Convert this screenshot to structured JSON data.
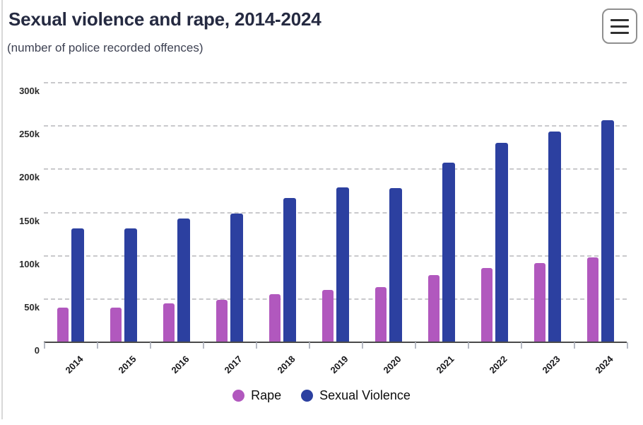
{
  "header": {
    "icons": {
      "menu": "hamburger-icon"
    }
  },
  "chart_data": {
    "type": "bar",
    "title": "Sexual violence and rape, 2014-2024",
    "subtitle": "(number of police recorded offences)",
    "categories": [
      "2014",
      "2015",
      "2016",
      "2017",
      "2018",
      "2019",
      "2020",
      "2021",
      "2022",
      "2023",
      "2024"
    ],
    "series": [
      {
        "name": "Rape",
        "color": "#b158be",
        "values": [
          39000,
          39000,
          44000,
          48000,
          55000,
          60000,
          63000,
          77000,
          85000,
          91000,
          97000
        ]
      },
      {
        "name": "Sexual Violence",
        "color": "#2c40a0",
        "values": [
          131000,
          131000,
          142000,
          148000,
          166000,
          178000,
          177000,
          207000,
          230000,
          243000,
          256000
        ]
      }
    ],
    "xlabel": "",
    "ylabel": "",
    "ylim": [
      0,
      300000
    ],
    "ytick_step": 50000,
    "ytick_labels": [
      "0",
      "50k",
      "100k",
      "150k",
      "200k",
      "250k",
      "300k"
    ],
    "grid": "horizontal-dashed",
    "grid_color": "#c9c9cc",
    "axis_color": "#4a4a4a",
    "legend_position": "bottom-center"
  }
}
